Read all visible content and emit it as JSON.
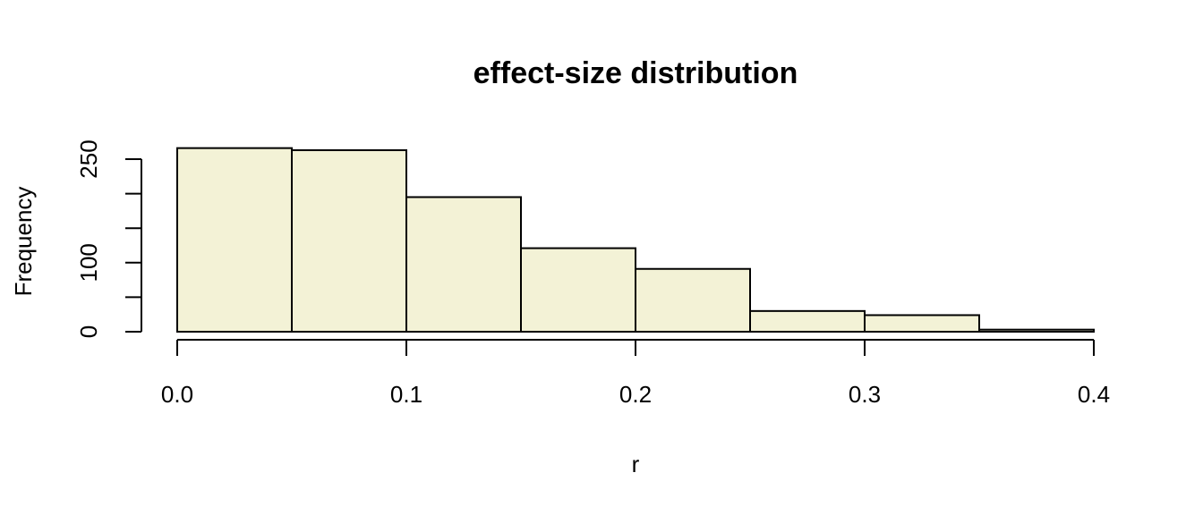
{
  "chart_data": {
    "type": "bar",
    "title": "effect-size distribution",
    "xlabel": "r",
    "ylabel": "Frequency",
    "bins": [
      {
        "x0": 0.0,
        "x1": 0.05,
        "count": 266
      },
      {
        "x0": 0.05,
        "x1": 0.1,
        "count": 263
      },
      {
        "x0": 0.1,
        "x1": 0.15,
        "count": 195
      },
      {
        "x0": 0.15,
        "x1": 0.2,
        "count": 121
      },
      {
        "x0": 0.2,
        "x1": 0.25,
        "count": 91
      },
      {
        "x0": 0.25,
        "x1": 0.3,
        "count": 30
      },
      {
        "x0": 0.3,
        "x1": 0.35,
        "count": 24
      },
      {
        "x0": 0.35,
        "x1": 0.4,
        "count": 3
      }
    ],
    "xlim": [
      0.0,
      0.4
    ],
    "ylim": [
      0,
      250
    ],
    "x_ticks": [
      0.0,
      0.1,
      0.2,
      0.3,
      0.4
    ],
    "x_tick_labels": [
      "0.0",
      "0.1",
      "0.2",
      "0.3",
      "0.4"
    ],
    "y_ticks": [
      0,
      50,
      100,
      150,
      200,
      250
    ],
    "y_tick_labels": [
      "0",
      "",
      "100",
      "",
      "",
      "250"
    ],
    "grid": false,
    "legend": "none",
    "bar_color": "#f3f2d6",
    "edge_color": "#000000"
  }
}
